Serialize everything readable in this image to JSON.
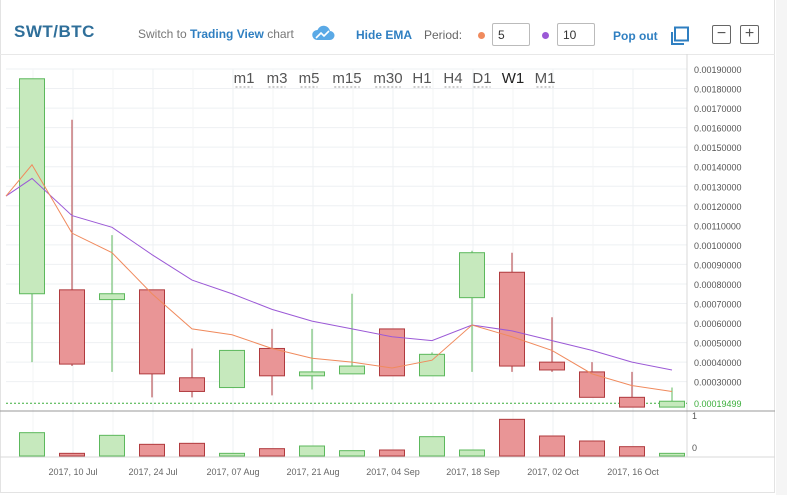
{
  "header": {
    "pair": "SWT/BTC",
    "switch_prefix": "Switch to",
    "switch_link": "Trading View",
    "switch_suffix": "chart",
    "hide_ema_label": "Hide EMA",
    "period_label": "Period:",
    "ema_short_value": "5",
    "ema_long_value": "10",
    "popout_label": "Pop out",
    "minus_label": "−",
    "plus_label": "+"
  },
  "colors": {
    "up_fill": "#c6e9bd",
    "up_stroke": "#5cb85c",
    "down_fill": "#e99596",
    "down_stroke": "#b03a3e",
    "ema_short": "#f08a5d",
    "ema_long": "#9b59d6",
    "accent": "#2f7fc1",
    "last_price": "#3cae3c"
  },
  "chart_data": {
    "type": "candlestick",
    "timeframes": [
      "m1",
      "m3",
      "m5",
      "m15",
      "m30",
      "H1",
      "H4",
      "D1",
      "W1",
      "M1"
    ],
    "active_timeframe": "W1",
    "y_ticks": [
      "0.00030000",
      "0.00040000",
      "0.00050000",
      "0.00060000",
      "0.00070000",
      "0.00080000",
      "0.00090000",
      "0.00100000",
      "0.00110000",
      "0.00120000",
      "0.00130000",
      "0.00140000",
      "0.00150000",
      "0.00160000",
      "0.00170000",
      "0.00180000",
      "0.00190000"
    ],
    "ylim": [
      0.00015,
      0.0019
    ],
    "x_labels": [
      "2017, 10 Jul",
      "2017, 24 Jul",
      "2017, 07 Aug",
      "2017, 21 Aug",
      "2017, 04 Sep",
      "2017, 18 Sep",
      "2017, 02 Oct",
      "2017, 16 Oct"
    ],
    "last_price_label": "0.00019499",
    "volume_ticks": [
      "1",
      "0"
    ],
    "candles": [
      {
        "o": 0.00075,
        "h": 0.00185,
        "l": 0.0004,
        "c": 0.00185,
        "v": 0.7
      },
      {
        "o": 0.00077,
        "h": 0.00164,
        "l": 0.00038,
        "c": 0.00039,
        "v": 0.08
      },
      {
        "o": 0.00072,
        "h": 0.00105,
        "l": 0.00035,
        "c": 0.00075,
        "v": 0.62
      },
      {
        "o": 0.00077,
        "h": 0.00077,
        "l": 0.00022,
        "c": 0.00034,
        "v": 0.35
      },
      {
        "o": 0.00032,
        "h": 0.00047,
        "l": 0.00022,
        "c": 0.00025,
        "v": 0.38
      },
      {
        "o": 0.00027,
        "h": 0.00046,
        "l": 0.00027,
        "c": 0.00046,
        "v": 0.08
      },
      {
        "o": 0.00047,
        "h": 0.00057,
        "l": 0.00023,
        "c": 0.00033,
        "v": 0.22
      },
      {
        "o": 0.00033,
        "h": 0.00057,
        "l": 0.00026,
        "c": 0.00035,
        "v": 0.3
      },
      {
        "o": 0.00034,
        "h": 0.00075,
        "l": 0.00034,
        "c": 0.00038,
        "v": 0.16
      },
      {
        "o": 0.00057,
        "h": 0.00057,
        "l": 0.00033,
        "c": 0.00033,
        "v": 0.18
      },
      {
        "o": 0.00033,
        "h": 0.00045,
        "l": 0.00033,
        "c": 0.00044,
        "v": 0.58
      },
      {
        "o": 0.00073,
        "h": 0.00097,
        "l": 0.00035,
        "c": 0.00096,
        "v": 0.18
      },
      {
        "o": 0.00086,
        "h": 0.00096,
        "l": 0.00035,
        "c": 0.00038,
        "v": 1.1
      },
      {
        "o": 0.0004,
        "h": 0.00063,
        "l": 0.00035,
        "c": 0.00036,
        "v": 0.6
      },
      {
        "o": 0.00035,
        "h": 0.0004,
        "l": 0.00022,
        "c": 0.00022,
        "v": 0.45
      },
      {
        "o": 0.00022,
        "h": 0.00035,
        "l": 0.00017,
        "c": 0.00017,
        "v": 0.28
      },
      {
        "o": 0.00017,
        "h": 0.00027,
        "l": 0.00017,
        "c": 0.0002,
        "v": 0.08
      }
    ],
    "ema_short": [
      0.00125,
      0.00141,
      0.00106,
      0.00096,
      0.00075,
      0.00057,
      0.00054,
      0.00047,
      0.00042,
      0.0004,
      0.00037,
      0.00041,
      0.00059,
      0.00053,
      0.00046,
      0.00034,
      0.00028,
      0.00025
    ],
    "ema_long": [
      0.00125,
      0.00134,
      0.00115,
      0.00109,
      0.00095,
      0.00082,
      0.00075,
      0.00067,
      0.00061,
      0.00057,
      0.00053,
      0.00051,
      0.00059,
      0.00056,
      0.00051,
      0.00046,
      0.0004,
      0.00036
    ]
  }
}
